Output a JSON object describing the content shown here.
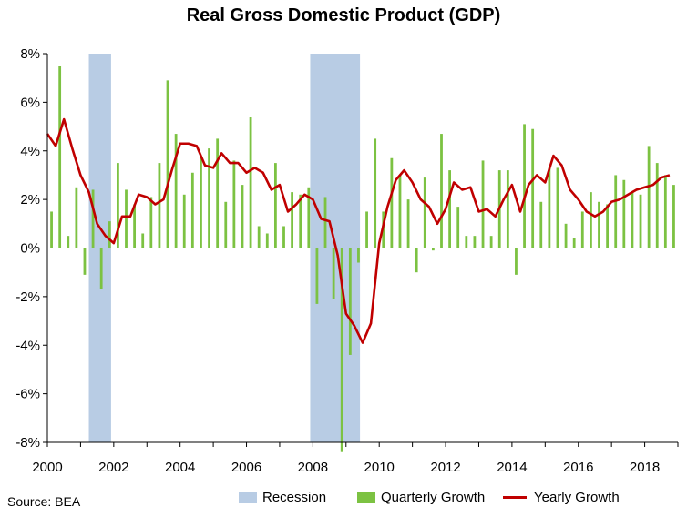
{
  "colors": {
    "recession": "#b8cce4",
    "quarterly": "#7cc242",
    "yearly": "#c00000",
    "axis": "#000000"
  },
  "chart_data": {
    "type": "bar",
    "title": "Real Gross Domestic Product (GDP)",
    "source": "Source: BEA",
    "xlim": [
      2000,
      2019
    ],
    "ylim": [
      -8,
      8
    ],
    "y_ticks": [
      -8,
      -6,
      -4,
      -2,
      0,
      2,
      4,
      6,
      8
    ],
    "y_tick_labels": [
      "-8%",
      "-6%",
      "-4%",
      "-2%",
      "0%",
      "2%",
      "4%",
      "6%",
      "8%"
    ],
    "x_ticks": [
      2000,
      2002,
      2004,
      2006,
      2008,
      2010,
      2012,
      2014,
      2016,
      2018
    ],
    "x_tick_labels": [
      "2000",
      "2002",
      "2004",
      "2006",
      "2008",
      "2010",
      "2012",
      "2014",
      "2016",
      "2018"
    ],
    "legend": [
      "Recession",
      "Quarterly Growth",
      "Yearly Growth"
    ],
    "legend_position": "bottom",
    "grid": false,
    "recessions": [
      {
        "start": 2001.25,
        "end": 2001.92
      },
      {
        "start": 2007.92,
        "end": 2009.42
      }
    ],
    "series": [
      {
        "name": "Quarterly Growth",
        "type": "bar",
        "x": [
          2000.0,
          2000.25,
          2000.5,
          2000.75,
          2001.0,
          2001.25,
          2001.5,
          2001.75,
          2002.0,
          2002.25,
          2002.5,
          2002.75,
          2003.0,
          2003.25,
          2003.5,
          2003.75,
          2004.0,
          2004.25,
          2004.5,
          2004.75,
          2005.0,
          2005.25,
          2005.5,
          2005.75,
          2006.0,
          2006.25,
          2006.5,
          2006.75,
          2007.0,
          2007.25,
          2007.5,
          2007.75,
          2008.0,
          2008.25,
          2008.5,
          2008.75,
          2009.0,
          2009.25,
          2009.5,
          2009.75,
          2010.0,
          2010.25,
          2010.5,
          2010.75,
          2011.0,
          2011.25,
          2011.5,
          2011.75,
          2012.0,
          2012.25,
          2012.5,
          2012.75,
          2013.0,
          2013.25,
          2013.5,
          2013.75,
          2014.0,
          2014.25,
          2014.5,
          2014.75,
          2015.0,
          2015.25,
          2015.5,
          2015.75,
          2016.0,
          2016.25,
          2016.5,
          2016.75,
          2017.0,
          2017.25,
          2017.5,
          2017.75,
          2018.0,
          2018.25,
          2018.5,
          2018.75
        ],
        "values": [
          1.5,
          7.5,
          0.5,
          2.5,
          -1.1,
          2.4,
          -1.7,
          1.1,
          3.5,
          2.4,
          1.8,
          0.6,
          2.1,
          3.5,
          6.9,
          4.7,
          2.2,
          3.1,
          3.8,
          4.1,
          4.5,
          1.9,
          3.6,
          2.6,
          5.4,
          0.9,
          0.6,
          3.5,
          0.9,
          2.3,
          2.2,
          2.5,
          -2.3,
          2.1,
          -2.1,
          -8.4,
          -4.4,
          -0.6,
          1.5,
          4.5,
          1.5,
          3.7,
          3.0,
          2.0,
          -1.0,
          2.9,
          -0.1,
          4.7,
          3.2,
          1.7,
          0.5,
          0.5,
          3.6,
          0.5,
          3.2,
          3.2,
          -1.1,
          5.1,
          4.9,
          1.9,
          3.3,
          3.3,
          1.0,
          0.4,
          1.5,
          2.3,
          1.9,
          1.8,
          3.0,
          2.8,
          2.3,
          2.2,
          4.2,
          3.5,
          3.0,
          2.6
        ]
      },
      {
        "name": "Yearly Growth",
        "type": "line",
        "x": [
          2000.0,
          2000.25,
          2000.5,
          2000.75,
          2001.0,
          2001.25,
          2001.5,
          2001.75,
          2002.0,
          2002.25,
          2002.5,
          2002.75,
          2003.0,
          2003.25,
          2003.5,
          2003.75,
          2004.0,
          2004.25,
          2004.5,
          2004.75,
          2005.0,
          2005.25,
          2005.5,
          2005.75,
          2006.0,
          2006.25,
          2006.5,
          2006.75,
          2007.0,
          2007.25,
          2007.5,
          2007.75,
          2008.0,
          2008.25,
          2008.5,
          2008.75,
          2009.0,
          2009.25,
          2009.5,
          2009.75,
          2010.0,
          2010.25,
          2010.5,
          2010.75,
          2011.0,
          2011.25,
          2011.5,
          2011.75,
          2012.0,
          2012.25,
          2012.5,
          2012.75,
          2013.0,
          2013.25,
          2013.5,
          2013.75,
          2014.0,
          2014.25,
          2014.5,
          2014.75,
          2015.0,
          2015.25,
          2015.5,
          2015.75,
          2016.0,
          2016.25,
          2016.5,
          2016.75,
          2017.0,
          2017.25,
          2017.5,
          2017.75,
          2018.0,
          2018.25,
          2018.5,
          2018.75
        ],
        "values": [
          4.7,
          4.2,
          5.3,
          4.1,
          3.0,
          2.3,
          1.0,
          0.5,
          0.2,
          1.3,
          1.3,
          2.2,
          2.1,
          1.8,
          2.0,
          3.2,
          4.3,
          4.3,
          4.2,
          3.4,
          3.3,
          3.9,
          3.5,
          3.5,
          3.1,
          3.3,
          3.1,
          2.4,
          2.6,
          1.5,
          1.8,
          2.2,
          2.0,
          1.2,
          1.1,
          -0.3,
          -2.7,
          -3.2,
          -3.9,
          -3.1,
          0.2,
          1.7,
          2.8,
          3.2,
          2.7,
          2.0,
          1.7,
          1.0,
          1.6,
          2.7,
          2.4,
          2.5,
          1.5,
          1.6,
          1.3,
          2.0,
          2.6,
          1.5,
          2.6,
          3.0,
          2.7,
          3.8,
          3.4,
          2.4,
          2.0,
          1.5,
          1.3,
          1.5,
          1.9,
          2.0,
          2.2,
          2.4,
          2.5,
          2.6,
          2.9,
          3.0
        ]
      }
    ]
  }
}
